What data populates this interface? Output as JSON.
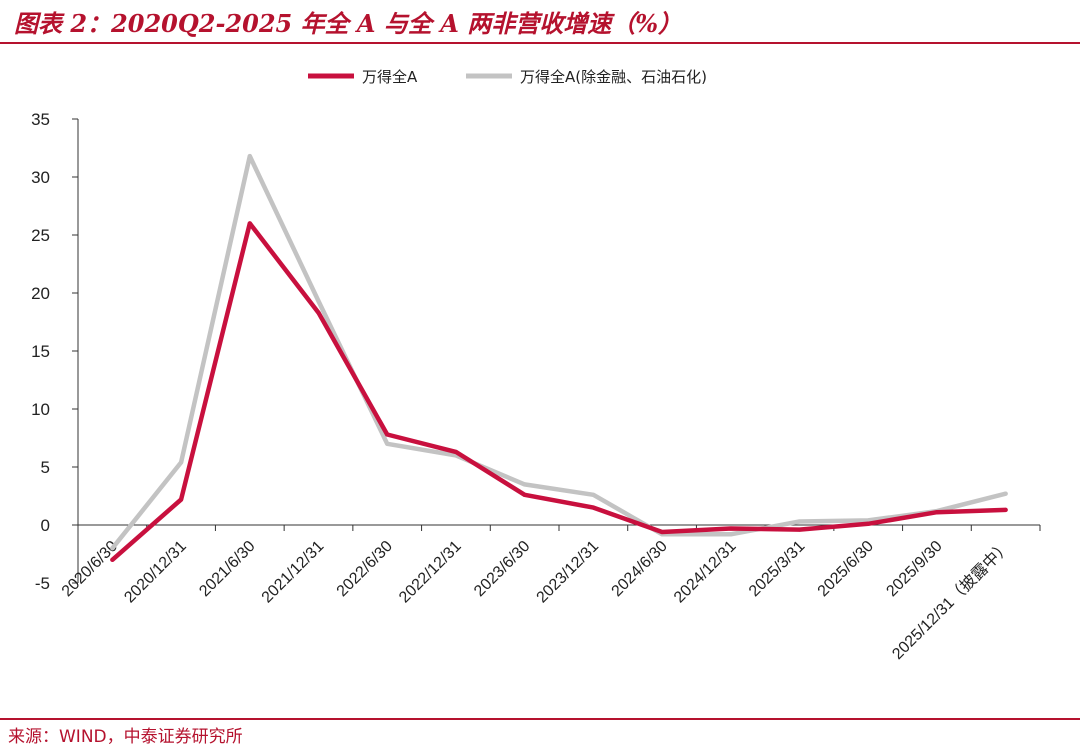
{
  "header": {
    "title": "图表 2：2020Q2-2025 年全 A 与全 A 两非营收增速（%）"
  },
  "footer": {
    "source": "来源：WIND，中泰证券研究所"
  },
  "colors": {
    "accent": "#b5122e",
    "series_main": "#c8103e",
    "series_ex": "#c3c3c3"
  },
  "chart_data": {
    "type": "line",
    "title": "2020Q2-2025 年全 A 与全 A 两非营收增速（%）",
    "xlabel": "",
    "ylabel": "",
    "ylim": [
      -5,
      35
    ],
    "yticks": [
      "-5",
      "0",
      "5",
      "10",
      "15",
      "20",
      "25",
      "30",
      "35"
    ],
    "grid": false,
    "legend": "top-center",
    "categories": [
      "2020/6/30",
      "2020/12/31",
      "2021/6/30",
      "2021/12/31",
      "2022/6/30",
      "2022/12/31",
      "2023/6/30",
      "2023/12/31",
      "2024/6/30",
      "2024/12/31",
      "2025/3/31",
      "2025/6/30",
      "2025/9/30",
      "2025/12/31（披露中）"
    ],
    "series": [
      {
        "name": "万得全A",
        "color": "#c8103e",
        "values": [
          -3.0,
          2.2,
          26.0,
          18.3,
          7.8,
          6.3,
          2.6,
          1.5,
          -0.6,
          -0.3,
          -0.4,
          0.1,
          1.1,
          1.3
        ]
      },
      {
        "name": "万得全A(除金融、石油石化)",
        "color": "#c3c3c3",
        "values": [
          -2.0,
          5.4,
          31.8,
          19.3,
          7.0,
          6.0,
          3.5,
          2.6,
          -0.8,
          -0.8,
          0.3,
          0.4,
          1.2,
          2.7
        ]
      }
    ]
  }
}
